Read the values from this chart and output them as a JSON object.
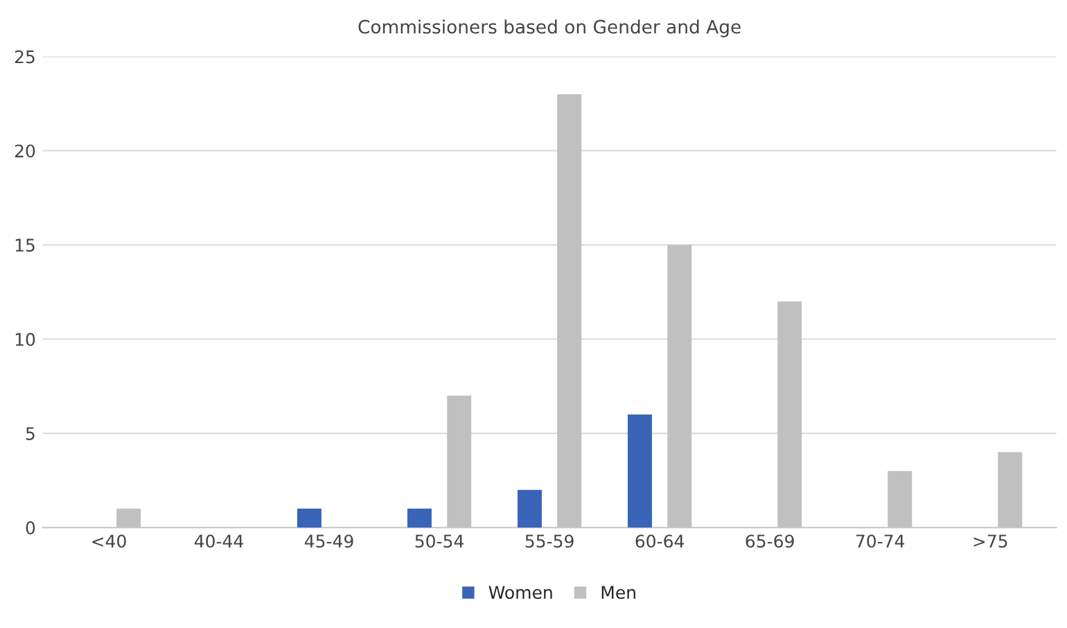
{
  "chart_data": {
    "type": "bar",
    "title": "Commissioners based on Gender and Age",
    "categories": [
      "<40",
      "40-44",
      "45-49",
      "50-54",
      "55-59",
      "60-64",
      "65-69",
      "70-74",
      ">75"
    ],
    "series": [
      {
        "name": "Women",
        "color": "#3a64b8",
        "values": [
          0,
          0,
          1,
          1,
          2,
          6,
          0,
          0,
          0
        ]
      },
      {
        "name": "Men",
        "color": "#c0c0c0",
        "values": [
          1,
          0,
          0,
          7,
          23,
          15,
          12,
          3,
          4
        ]
      }
    ],
    "ylim": [
      0,
      25
    ],
    "yticks": [
      0,
      5,
      10,
      15,
      20,
      25
    ],
    "grid": "y",
    "legend": "bottom"
  }
}
